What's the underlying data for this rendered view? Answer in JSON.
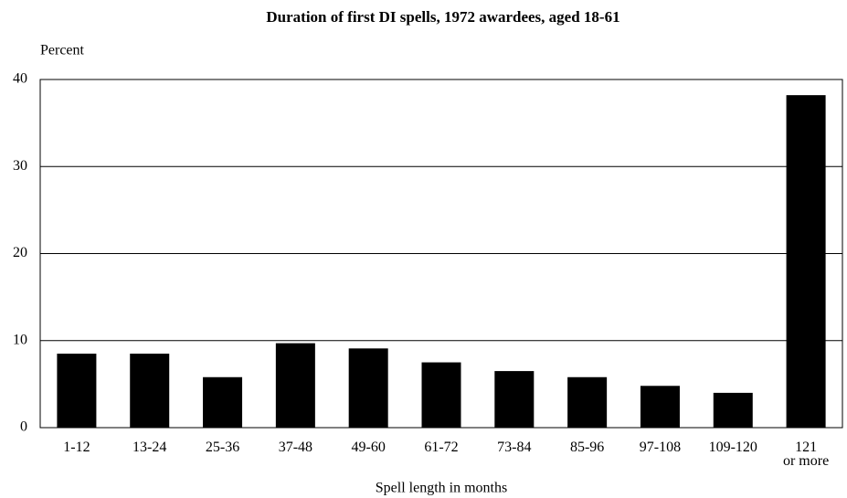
{
  "chart_data": {
    "type": "bar",
    "title": "Duration of first DI spells, 1972 awardees, aged 18-61",
    "y_axis_label": "Percent",
    "x_axis_label": "Spell length in months",
    "categories": [
      "1-12",
      "13-24",
      "25-36",
      "37-48",
      "49-60",
      "61-72",
      "73-84",
      "85-96",
      "97-108",
      "109-120",
      "121\nor more"
    ],
    "values": [
      8.5,
      8.5,
      5.8,
      9.7,
      9.1,
      7.5,
      6.5,
      5.8,
      4.8,
      4.0,
      38.2
    ],
    "color": "#000000",
    "ylim": [
      0,
      40
    ],
    "yticks": [
      0,
      10,
      20,
      30,
      40
    ],
    "grid": true
  }
}
